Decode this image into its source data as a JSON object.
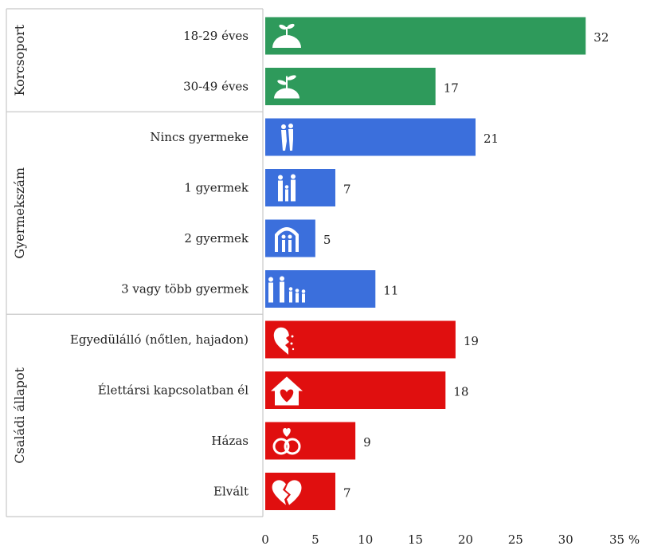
{
  "chart_data": {
    "type": "bar",
    "orientation": "horizontal",
    "groups": [
      {
        "label": "Korcsoport",
        "color": "#2e9a5b",
        "items": [
          {
            "category": "18-29 éves",
            "value": 32,
            "value_label": "32",
            "icon": "sprout-icon"
          },
          {
            "category": "30-49 éves",
            "value": 17,
            "value_label": "17",
            "icon": "seedling-icon"
          }
        ]
      },
      {
        "label": "Gyermekszám",
        "color": "#3b6fdc",
        "items": [
          {
            "category": "Nincs gyermeke",
            "value": 21,
            "value_label": "21",
            "icon": "couple-icon"
          },
          {
            "category": "1 gyermek",
            "value": 7,
            "value_label": "7",
            "icon": "family-one-child-icon"
          },
          {
            "category": "2 gyermek",
            "value": 5,
            "value_label": "5",
            "icon": "family-two-children-icon"
          },
          {
            "category": "3 vagy több gyermek",
            "value": 11,
            "value_label": "11",
            "icon": "family-three-children-icon"
          }
        ]
      },
      {
        "label": "Családi állapot",
        "color": "#e00f0f",
        "items": [
          {
            "category": "Egyedülálló (nőtlen, hajadon)",
            "value": 19,
            "value_label": "19",
            "icon": "half-heart-icon"
          },
          {
            "category": "Élettársi kapcsolatban él",
            "value": 18,
            "value_label": "18",
            "icon": "heart-house-icon"
          },
          {
            "category": "Házas",
            "value": 9,
            "value_label": "9",
            "icon": "wedding-rings-icon"
          },
          {
            "category": "Elvált",
            "value": 7,
            "value_label": "7",
            "icon": "broken-heart-icon"
          }
        ]
      }
    ],
    "xlim": [
      0,
      35
    ],
    "xticks": [
      "0",
      "5",
      "10",
      "15",
      "20",
      "25",
      "30",
      "35 %"
    ],
    "grid": false,
    "legend": "none"
  }
}
